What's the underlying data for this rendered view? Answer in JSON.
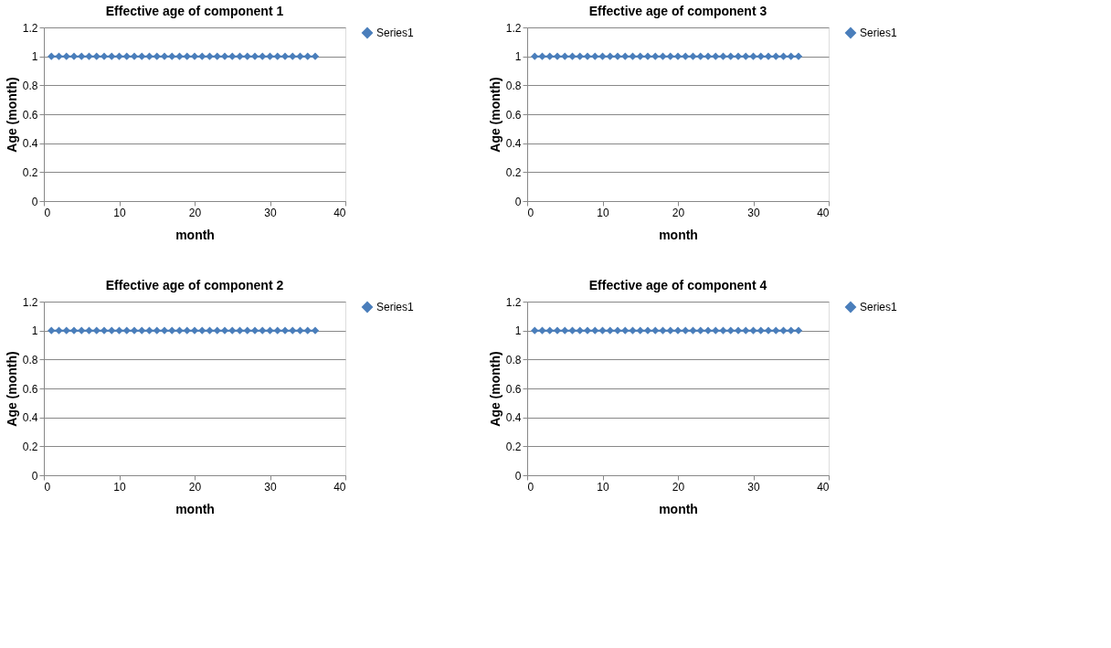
{
  "chart_data": [
    {
      "type": "line",
      "title": "Effective age  of component 1",
      "xlabel": "month",
      "ylabel": "Age (month)",
      "x": [
        1,
        2,
        3,
        4,
        5,
        6,
        7,
        8,
        9,
        10,
        11,
        12,
        13,
        14,
        15,
        16,
        17,
        18,
        19,
        20,
        21,
        22,
        23,
        24,
        25,
        26,
        27,
        28,
        29,
        30,
        31,
        32,
        33,
        34,
        35,
        36
      ],
      "xlim": [
        0,
        40
      ],
      "xticks": [
        0,
        10,
        20,
        30,
        40
      ],
      "ylim": [
        0,
        1.2
      ],
      "yticks": [
        0,
        0.2,
        0.4,
        0.6,
        0.8,
        1,
        1.2
      ],
      "grid": "y",
      "legend": "right",
      "marker": "diamond",
      "line_style": "solid",
      "series": [
        {
          "name": "Series1",
          "color": "#4a7ebb",
          "values": [
            1,
            1,
            1,
            1,
            1,
            1,
            1,
            1,
            1,
            1,
            1,
            1,
            1,
            1,
            1,
            1,
            1,
            1,
            1,
            1,
            1,
            1,
            1,
            1,
            1,
            1,
            1,
            1,
            1,
            1,
            1,
            1,
            1,
            1,
            1,
            1
          ]
        }
      ]
    },
    {
      "type": "line",
      "title": "Effective age  of component 3",
      "xlabel": "month",
      "ylabel": "Age (month)",
      "x": [
        1,
        2,
        3,
        4,
        5,
        6,
        7,
        8,
        9,
        10,
        11,
        12,
        13,
        14,
        15,
        16,
        17,
        18,
        19,
        20,
        21,
        22,
        23,
        24,
        25,
        26,
        27,
        28,
        29,
        30,
        31,
        32,
        33,
        34,
        35,
        36
      ],
      "xlim": [
        0,
        40
      ],
      "xticks": [
        0,
        10,
        20,
        30,
        40
      ],
      "ylim": [
        0,
        1.2
      ],
      "yticks": [
        0,
        0.2,
        0.4,
        0.6,
        0.8,
        1,
        1.2
      ],
      "grid": "y",
      "legend": "right",
      "marker": "diamond",
      "line_style": "solid",
      "series": [
        {
          "name": "Series1",
          "color": "#4a7ebb",
          "values": [
            1,
            1,
            1,
            1,
            1,
            1,
            1,
            1,
            1,
            1,
            1,
            1,
            1,
            1,
            1,
            1,
            1,
            1,
            1,
            1,
            1,
            1,
            1,
            1,
            1,
            1,
            1,
            1,
            1,
            1,
            1,
            1,
            1,
            1,
            1,
            1
          ]
        }
      ]
    },
    {
      "type": "line",
      "title": "Effective age  of component 2",
      "xlabel": "month",
      "ylabel": "Age (month)",
      "x": [
        1,
        2,
        3,
        4,
        5,
        6,
        7,
        8,
        9,
        10,
        11,
        12,
        13,
        14,
        15,
        16,
        17,
        18,
        19,
        20,
        21,
        22,
        23,
        24,
        25,
        26,
        27,
        28,
        29,
        30,
        31,
        32,
        33,
        34,
        35,
        36
      ],
      "xlim": [
        0,
        40
      ],
      "xticks": [
        0,
        10,
        20,
        30,
        40
      ],
      "ylim": [
        0,
        1.2
      ],
      "yticks": [
        0,
        0.2,
        0.4,
        0.6,
        0.8,
        1,
        1.2
      ],
      "grid": "y",
      "legend": "right",
      "marker": "diamond",
      "line_style": "solid",
      "series": [
        {
          "name": "Series1",
          "color": "#4a7ebb",
          "values": [
            1,
            1,
            1,
            1,
            1,
            1,
            1,
            1,
            1,
            1,
            1,
            1,
            1,
            1,
            1,
            1,
            1,
            1,
            1,
            1,
            1,
            1,
            1,
            1,
            1,
            1,
            1,
            1,
            1,
            1,
            1,
            1,
            1,
            1,
            1,
            1
          ]
        }
      ]
    },
    {
      "type": "line",
      "title": "Effective age  of component 4",
      "xlabel": "month",
      "ylabel": "Age (month)",
      "x": [
        1,
        2,
        3,
        4,
        5,
        6,
        7,
        8,
        9,
        10,
        11,
        12,
        13,
        14,
        15,
        16,
        17,
        18,
        19,
        20,
        21,
        22,
        23,
        24,
        25,
        26,
        27,
        28,
        29,
        30,
        31,
        32,
        33,
        34,
        35,
        36
      ],
      "xlim": [
        0,
        40
      ],
      "xticks": [
        0,
        10,
        20,
        30,
        40
      ],
      "ylim": [
        0,
        1.2
      ],
      "yticks": [
        0,
        0.2,
        0.4,
        0.6,
        0.8,
        1,
        1.2
      ],
      "grid": "y",
      "legend": "right",
      "marker": "diamond",
      "line_style": "solid",
      "series": [
        {
          "name": "Series1",
          "color": "#4a7ebb",
          "values": [
            1,
            1,
            1,
            1,
            1,
            1,
            1,
            1,
            1,
            1,
            1,
            1,
            1,
            1,
            1,
            1,
            1,
            1,
            1,
            1,
            1,
            1,
            1,
            1,
            1,
            1,
            1,
            1,
            1,
            1,
            1,
            1,
            1,
            1,
            1,
            1
          ]
        }
      ]
    }
  ]
}
